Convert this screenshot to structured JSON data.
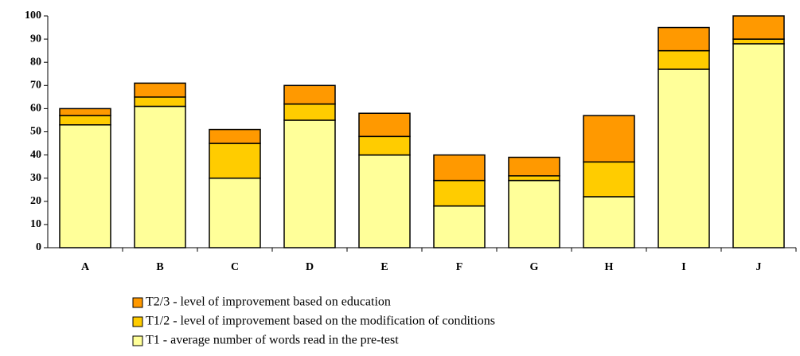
{
  "chart_data": {
    "type": "stacked_bar",
    "categories": [
      "A",
      "B",
      "C",
      "D",
      "E",
      "F",
      "G",
      "H",
      "I",
      "J"
    ],
    "series": [
      {
        "name": "T1 - average number of words read in the pre-test",
        "color": "#ffff99",
        "values": [
          53,
          61,
          30,
          55,
          40,
          18,
          29,
          22,
          77,
          88
        ]
      },
      {
        "name": "T1/2 -  level of improvement based on the modification of conditions",
        "color": "#ffcc00",
        "values": [
          4,
          4,
          15,
          7,
          8,
          11,
          2,
          15,
          8,
          2
        ]
      },
      {
        "name": "T2/3 - level of improvement based on education",
        "color": "#ff9900",
        "values": [
          3,
          6,
          6,
          8,
          10,
          11,
          8,
          20,
          10,
          10
        ]
      }
    ],
    "ylim": [
      0,
      100
    ],
    "yticks": [
      0,
      10,
      20,
      30,
      40,
      50,
      60,
      70,
      80,
      90,
      100
    ],
    "grid": false
  }
}
